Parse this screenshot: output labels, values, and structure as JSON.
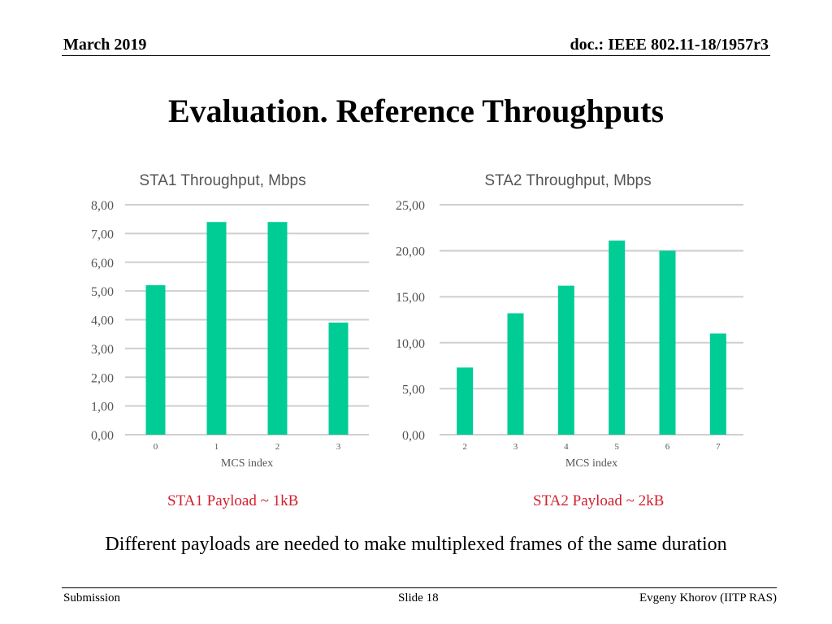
{
  "header": {
    "date": "March 2019",
    "doc": "doc.: IEEE 802.11-18/1957r3"
  },
  "slide_title": "Evaluation. Reference Throughputs",
  "colors": {
    "bar": "#00cc96",
    "grid": "#cfcfcf",
    "axis_text": "#555555",
    "caption": "#d2202e"
  },
  "chart_data": [
    {
      "type": "bar",
      "title": "STA1 Throughput, Mbps",
      "xlabel": "MCS index",
      "ylabel": "",
      "categories": [
        "0",
        "1",
        "2",
        "3"
      ],
      "values": [
        5.2,
        7.4,
        7.4,
        3.9
      ],
      "ylim": [
        0,
        8
      ],
      "yticks": [
        "0,00",
        "1,00",
        "2,00",
        "3,00",
        "4,00",
        "5,00",
        "6,00",
        "7,00",
        "8,00"
      ],
      "grid": true,
      "legend": "none"
    },
    {
      "type": "bar",
      "title": "STA2 Throughput, Mbps",
      "xlabel": "MCS index",
      "ylabel": "",
      "categories": [
        "2",
        "3",
        "4",
        "5",
        "6",
        "7"
      ],
      "values": [
        7.3,
        13.2,
        16.2,
        21.1,
        20.0,
        11.0
      ],
      "ylim": [
        0,
        25
      ],
      "yticks": [
        "0,00",
        "5,00",
        "10,00",
        "15,00",
        "20,00",
        "25,00"
      ],
      "grid": true,
      "legend": "none"
    }
  ],
  "captions": {
    "left": "STA1 Payload ~ 1kB",
    "right": "STA2 Payload ~ 2kB"
  },
  "note": "Different payloads are needed to make multiplexed frames of the same duration",
  "footer": {
    "left": "Submission",
    "center": "Slide 18",
    "right": "Evgeny Khorov (IITP RAS)"
  }
}
